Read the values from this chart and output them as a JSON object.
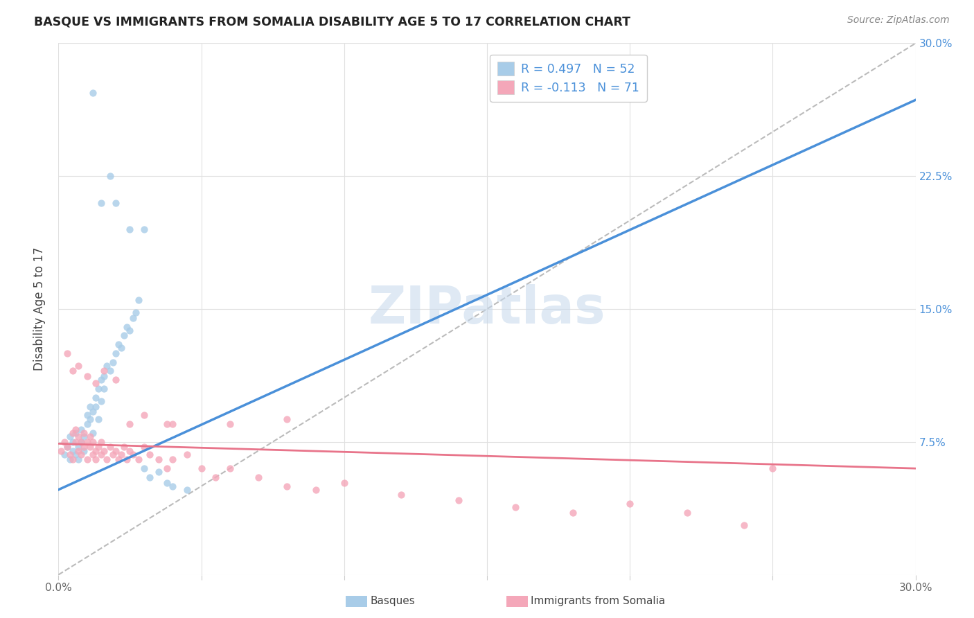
{
  "title": "BASQUE VS IMMIGRANTS FROM SOMALIA DISABILITY AGE 5 TO 17 CORRELATION CHART",
  "source": "Source: ZipAtlas.com",
  "ylabel": "Disability Age 5 to 17",
  "xlim": [
    0.0,
    0.3
  ],
  "ylim": [
    0.0,
    0.3
  ],
  "watermark": "ZIPatlas",
  "color_basque": "#a8cce8",
  "color_somalia": "#f4a7b9",
  "color_line_basque": "#4a90d9",
  "color_line_somalia": "#e8748a",
  "color_dashed": "#bbbbbb",
  "basque_scatter_x": [
    0.002,
    0.003,
    0.004,
    0.004,
    0.005,
    0.005,
    0.006,
    0.006,
    0.007,
    0.007,
    0.008,
    0.008,
    0.009,
    0.009,
    0.01,
    0.01,
    0.011,
    0.011,
    0.012,
    0.012,
    0.013,
    0.013,
    0.014,
    0.014,
    0.015,
    0.015,
    0.016,
    0.016,
    0.017,
    0.018,
    0.019,
    0.02,
    0.021,
    0.022,
    0.023,
    0.024,
    0.025,
    0.026,
    0.027,
    0.028,
    0.03,
    0.032,
    0.035,
    0.038,
    0.04,
    0.045,
    0.018,
    0.02,
    0.025,
    0.03,
    0.012,
    0.015
  ],
  "basque_scatter_y": [
    0.068,
    0.072,
    0.065,
    0.078,
    0.07,
    0.075,
    0.068,
    0.08,
    0.065,
    0.072,
    0.075,
    0.082,
    0.07,
    0.078,
    0.085,
    0.09,
    0.088,
    0.095,
    0.08,
    0.092,
    0.095,
    0.1,
    0.088,
    0.105,
    0.098,
    0.11,
    0.105,
    0.112,
    0.118,
    0.115,
    0.12,
    0.125,
    0.13,
    0.128,
    0.135,
    0.14,
    0.138,
    0.145,
    0.148,
    0.155,
    0.06,
    0.055,
    0.058,
    0.052,
    0.05,
    0.048,
    0.225,
    0.21,
    0.195,
    0.195,
    0.272,
    0.21
  ],
  "somalia_scatter_x": [
    0.001,
    0.002,
    0.003,
    0.004,
    0.005,
    0.005,
    0.006,
    0.006,
    0.007,
    0.007,
    0.008,
    0.008,
    0.009,
    0.009,
    0.01,
    0.01,
    0.011,
    0.011,
    0.012,
    0.012,
    0.013,
    0.013,
    0.014,
    0.015,
    0.015,
    0.016,
    0.017,
    0.018,
    0.019,
    0.02,
    0.021,
    0.022,
    0.023,
    0.024,
    0.025,
    0.026,
    0.028,
    0.03,
    0.032,
    0.035,
    0.038,
    0.04,
    0.045,
    0.05,
    0.055,
    0.06,
    0.07,
    0.08,
    0.09,
    0.1,
    0.12,
    0.14,
    0.16,
    0.18,
    0.2,
    0.22,
    0.24,
    0.038,
    0.06,
    0.08,
    0.003,
    0.005,
    0.007,
    0.01,
    0.013,
    0.016,
    0.02,
    0.025,
    0.03,
    0.04,
    0.25
  ],
  "somalia_scatter_y": [
    0.07,
    0.075,
    0.072,
    0.068,
    0.08,
    0.065,
    0.075,
    0.082,
    0.07,
    0.078,
    0.075,
    0.068,
    0.072,
    0.08,
    0.075,
    0.065,
    0.078,
    0.072,
    0.068,
    0.075,
    0.07,
    0.065,
    0.072,
    0.068,
    0.075,
    0.07,
    0.065,
    0.072,
    0.068,
    0.07,
    0.065,
    0.068,
    0.072,
    0.065,
    0.07,
    0.068,
    0.065,
    0.072,
    0.068,
    0.065,
    0.06,
    0.065,
    0.068,
    0.06,
    0.055,
    0.06,
    0.055,
    0.05,
    0.048,
    0.052,
    0.045,
    0.042,
    0.038,
    0.035,
    0.04,
    0.035,
    0.028,
    0.085,
    0.085,
    0.088,
    0.125,
    0.115,
    0.118,
    0.112,
    0.108,
    0.115,
    0.11,
    0.085,
    0.09,
    0.085,
    0.06
  ],
  "basque_line_x": [
    0.0,
    0.3
  ],
  "basque_line_y": [
    0.048,
    0.268
  ],
  "somalia_line_x": [
    0.0,
    0.3
  ],
  "somalia_line_y": [
    0.074,
    0.06
  ],
  "diag_line_x": [
    0.0,
    0.3
  ],
  "diag_line_y": [
    0.0,
    0.3
  ],
  "legend_label1": "R = 0.497   N = 52",
  "legend_label2": "R = -0.113   N = 71",
  "bottom_label1": "Basques",
  "bottom_label2": "Immigrants from Somalia"
}
